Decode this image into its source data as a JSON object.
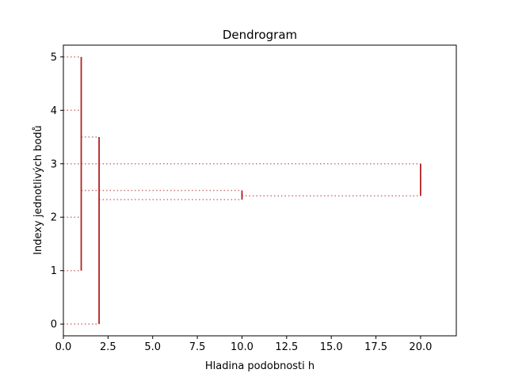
{
  "chart_data": {
    "type": "dendrogram",
    "title": "Dendrogram",
    "xlabel": "Hladina podobnosti h",
    "ylabel": "Indexy jednotlivých bodů",
    "xlim": [
      0,
      22
    ],
    "ylim": [
      -0.22,
      5.22
    ],
    "x_ticks": [
      0,
      2.5,
      5,
      7.5,
      10,
      12.5,
      15,
      17.5,
      20
    ],
    "x_tick_labels": [
      "0.0",
      "2.5",
      "5.0",
      "7.5",
      "10.0",
      "12.5",
      "15.0",
      "17.5",
      "20.0"
    ],
    "y_ticks": [
      0,
      1,
      2,
      3,
      4,
      5
    ],
    "y_tick_labels": [
      "0",
      "1",
      "2",
      "3",
      "4",
      "5"
    ],
    "grid": false,
    "colors": {
      "vertical": "#b22222",
      "connector": "#c87878"
    },
    "merges": [
      {
        "h": 1,
        "y_low": 1,
        "y_high": 5,
        "connectors": [
          {
            "y": 5,
            "x_from": 0
          },
          {
            "y": 4,
            "x_from": 0
          },
          {
            "y": 2,
            "x_from": 0
          },
          {
            "y": 1,
            "x_from": 0
          }
        ]
      },
      {
        "h": 2,
        "y_low": 0,
        "y_high": 3.5,
        "connectors": [
          {
            "y": 3.5,
            "x_from": 1
          },
          {
            "y": 0,
            "x_from": 0
          }
        ]
      },
      {
        "h": 10,
        "y_low": 2.33,
        "y_high": 2.5,
        "connectors": [
          {
            "y": 2.5,
            "x_from": 1
          },
          {
            "y": 2.33,
            "x_from": 2
          }
        ]
      },
      {
        "h": 20,
        "y_low": 2.4,
        "y_high": 3,
        "connectors": [
          {
            "y": 3,
            "x_from": 0
          },
          {
            "y": 2.4,
            "x_from": 10
          }
        ]
      }
    ]
  }
}
